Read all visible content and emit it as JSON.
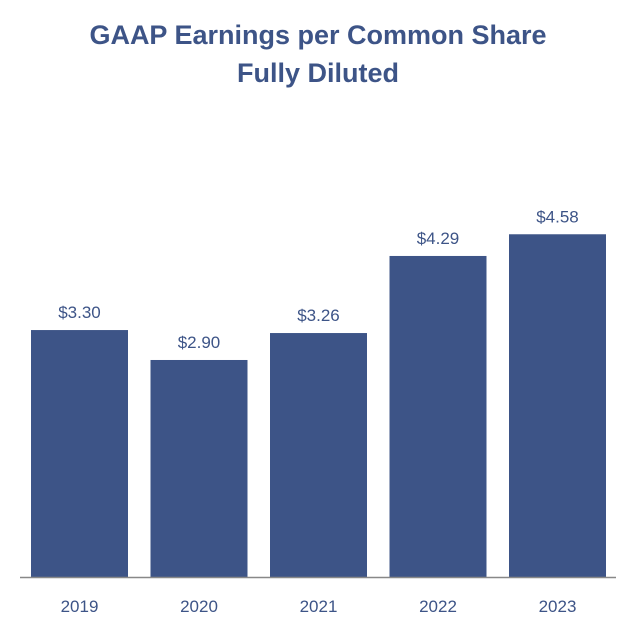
{
  "chart_data": {
    "type": "bar",
    "title": "GAAP Earnings per Common Share",
    "subtitle": "Fully Diluted",
    "categories": [
      "2019",
      "2020",
      "2021",
      "2022",
      "2023"
    ],
    "values": [
      3.3,
      2.9,
      3.26,
      4.29,
      4.58
    ],
    "data_labels": [
      "$3.30",
      "$2.90",
      "$3.26",
      "$4.29",
      "$4.58"
    ],
    "xlabel": "",
    "ylabel": "",
    "ylim": [
      0,
      6
    ],
    "grid": false,
    "colors": {
      "bar": "#3d5487",
      "text": "#3d5487",
      "axis": "#888888"
    }
  }
}
